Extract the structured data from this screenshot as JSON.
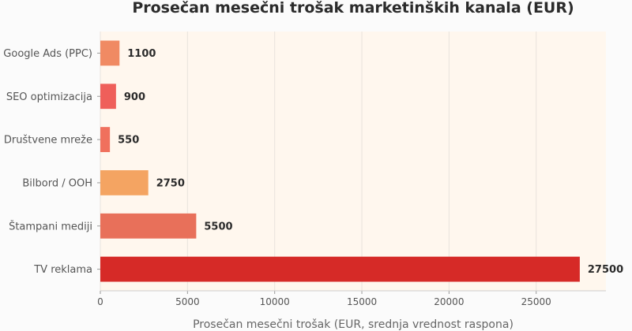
{
  "chart_data": {
    "type": "bar",
    "orientation": "horizontal",
    "title": "Prosečan mesečni trošak marketinških kanala (EUR)",
    "xlabel": "Prosečan mesečni trošak (EUR, srednja vrednost raspona)",
    "ylabel": "",
    "xlim": [
      0,
      29000
    ],
    "x_ticks": [
      0,
      5000,
      10000,
      15000,
      20000,
      25000
    ],
    "grid": true,
    "categories": [
      "Google Ads (PPC)",
      "SEO optimizacija",
      "Društvene mreže",
      "Bilbord / OOH",
      "Štampani mediji",
      "TV reklama"
    ],
    "values": [
      1100,
      900,
      550,
      2750,
      5500,
      27500
    ],
    "value_labels": [
      "1100",
      "900",
      "550",
      "2750",
      "5500",
      "27500"
    ],
    "colors": [
      "#f08a63",
      "#ef5f5a",
      "#f0705d",
      "#f4a462",
      "#e8705a",
      "#d62a27"
    ],
    "background": "#fff7ee"
  }
}
